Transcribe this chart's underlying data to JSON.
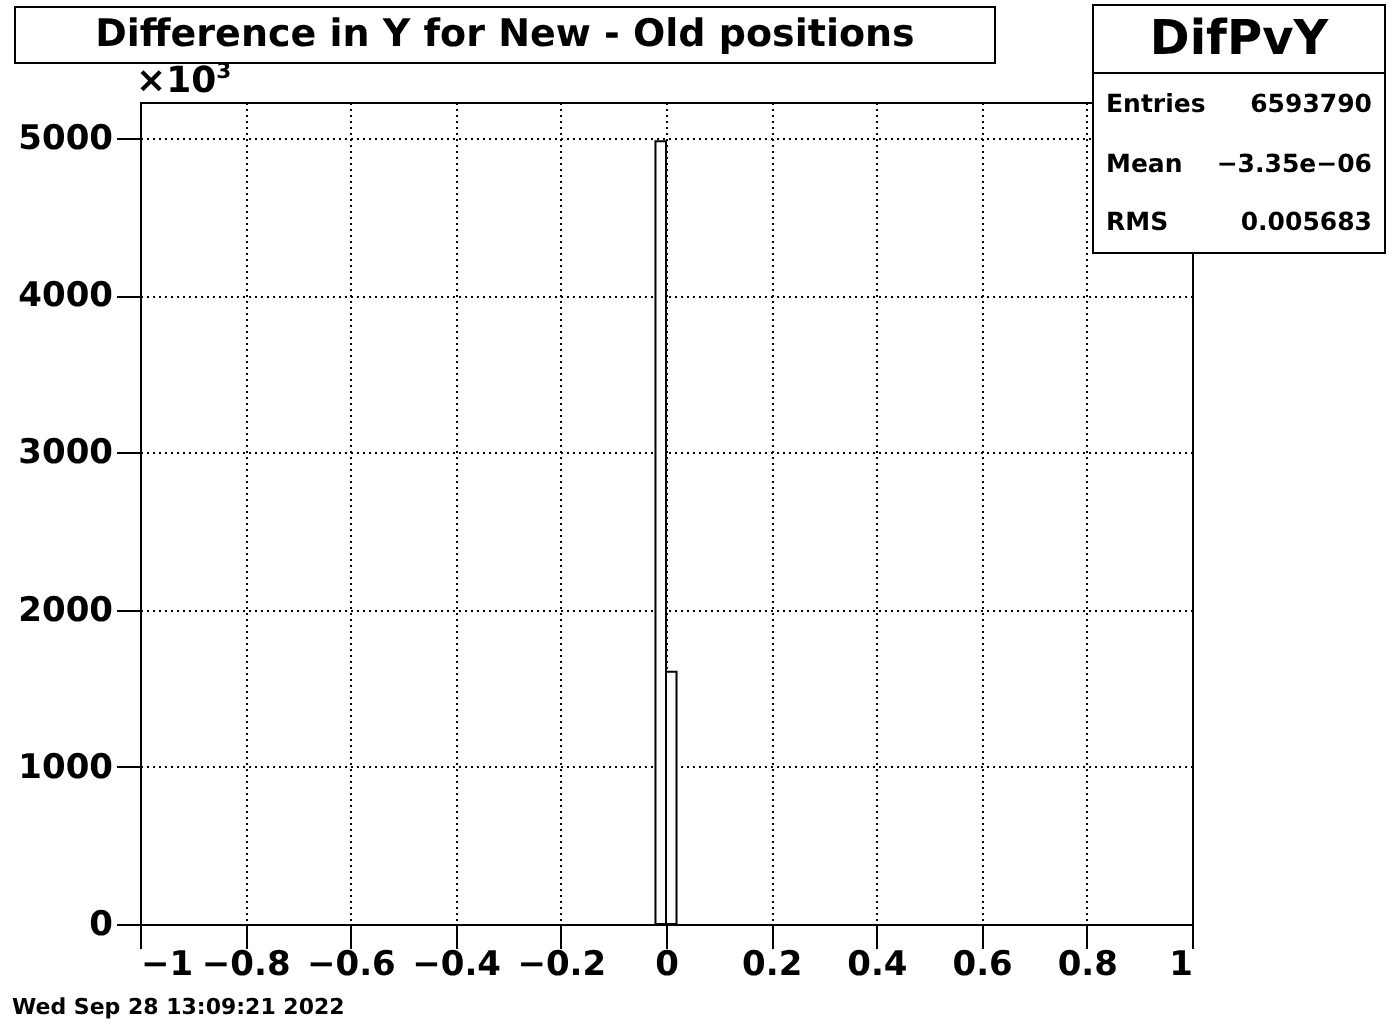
{
  "chart_data": {
    "type": "histogram",
    "title": "Difference in Y for New - Old positions",
    "bins": [
      -0.02,
      0,
      0.02
    ],
    "values": [
      4980,
      1605
    ],
    "color": "#ffffff",
    "xlim": [
      -1,
      1
    ],
    "xticks": [
      {
        "value": -1,
        "label": "−1"
      },
      {
        "value": -0.8,
        "label": "−0.8"
      },
      {
        "value": -0.6,
        "label": "−0.6"
      },
      {
        "value": -0.4,
        "label": "−0.4"
      },
      {
        "value": -0.2,
        "label": "−0.2"
      },
      0,
      0.2,
      0.4,
      0.6,
      0.8,
      1
    ],
    "ylim": [
      0,
      5230
    ],
    "yticks": [
      0,
      1000,
      2000,
      3000,
      4000,
      5000
    ],
    "grid": true,
    "annotations": [
      "×10$^{3}$",
      "DifPvY",
      "Entries 6593790",
      "Mean −3.35e−06",
      "RMS 0.005683",
      "Wed Sep 28 13:09:21 2022"
    ]
  }
}
